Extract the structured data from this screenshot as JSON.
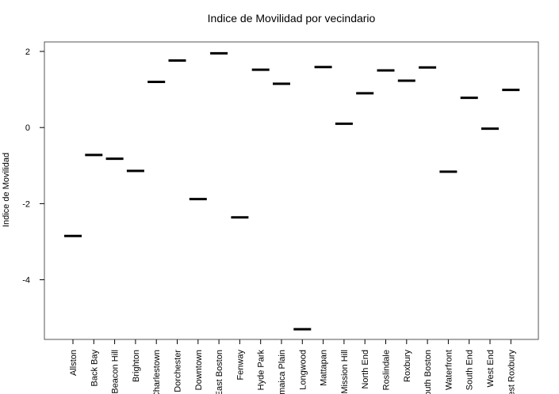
{
  "chart_data": {
    "type": "box",
    "title": "Indice de Movilidad por vecindario",
    "xlabel": "",
    "ylabel": "Indice de Movilidad",
    "ylim": [
      -5.55,
      2.25
    ],
    "yticks": [
      2,
      0,
      -2,
      -4
    ],
    "ytick_labels": [
      "2",
      "0",
      "-2",
      "-4"
    ],
    "grid": false,
    "categories": [
      "Allston",
      "Back Bay",
      "Beacon Hill",
      "Brighton",
      "Charlestown",
      "Dorchester",
      "Downtown",
      "East Boston",
      "Fenway",
      "Hyde Park",
      "Jamaica Plain",
      "Longwood",
      "Mattapan",
      "Mission Hill",
      "North End",
      "Roslindale",
      "Roxbury",
      "South Boston",
      "Waterfront",
      "South End",
      "West End",
      "West Roxbury"
    ],
    "values": [
      -2.85,
      -0.72,
      -0.82,
      -1.14,
      1.2,
      1.76,
      -1.88,
      1.95,
      -2.36,
      1.52,
      1.15,
      -5.3,
      1.59,
      0.1,
      0.9,
      1.5,
      1.23,
      1.58,
      -1.16,
      0.78,
      -0.03,
      0.99
    ]
  }
}
